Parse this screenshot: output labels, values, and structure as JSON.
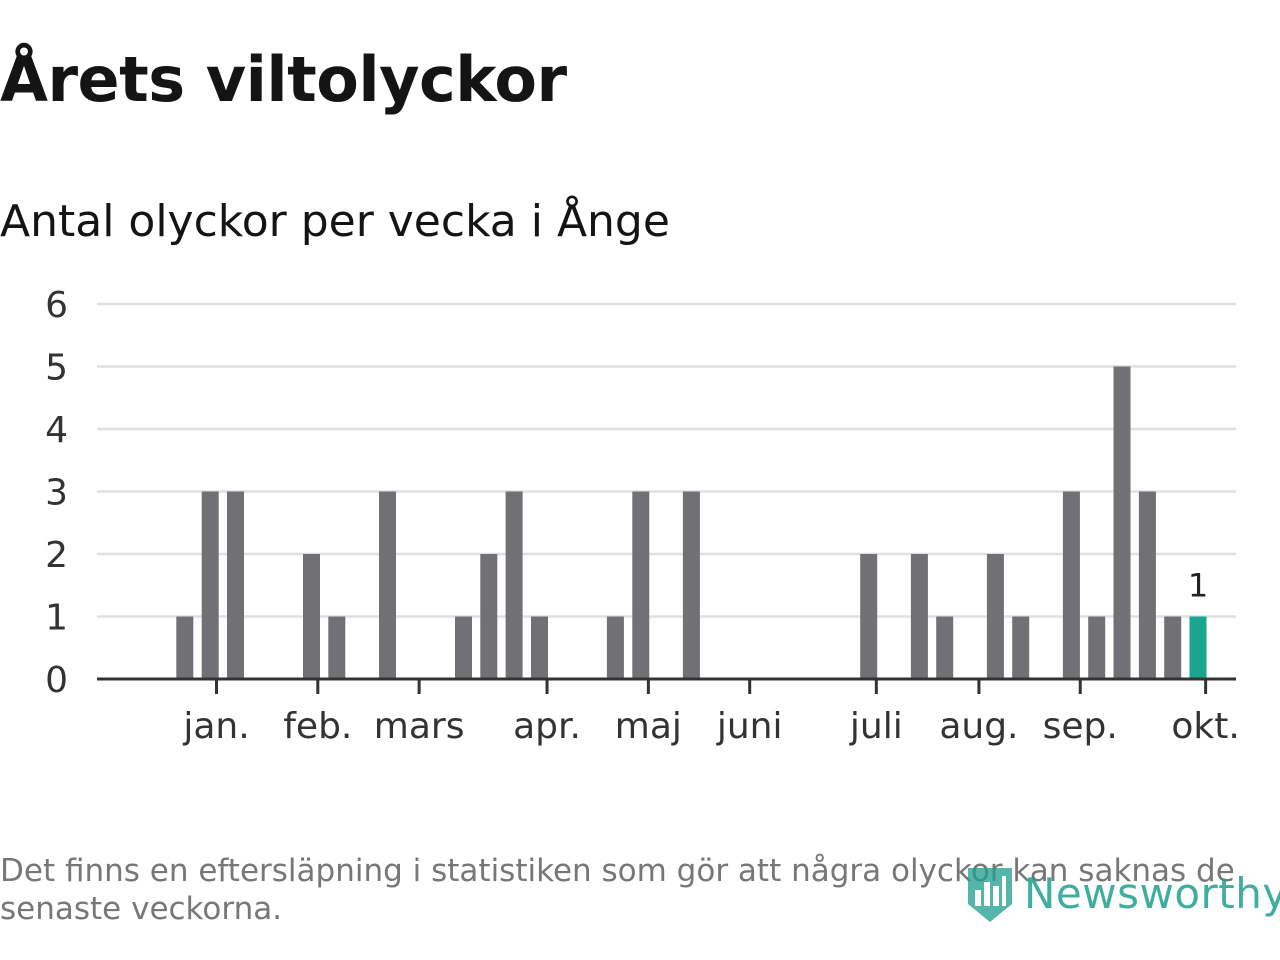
{
  "header": {
    "title": "Årets viltolyckor",
    "subtitle": "Antal olyckor per vecka i Ånge"
  },
  "chart_data": {
    "type": "bar",
    "title": "Årets viltolyckor",
    "subtitle": "Antal olyckor per vecka i Ånge",
    "xlabel": "",
    "ylabel": "",
    "ylim": [
      0,
      6
    ],
    "yticks": [
      0,
      1,
      2,
      3,
      4,
      5,
      6
    ],
    "grid": true,
    "weeks": [
      1,
      2,
      3,
      4,
      5,
      6,
      7,
      8,
      9,
      10,
      11,
      12,
      13,
      14,
      15,
      16,
      17,
      18,
      19,
      20,
      21,
      22,
      23,
      24,
      25,
      26,
      27,
      28,
      29,
      30,
      31,
      32,
      33,
      34,
      35,
      36,
      37,
      38,
      39,
      40,
      41,
      42
    ],
    "values": [
      0,
      1,
      3,
      3,
      0,
      0,
      2,
      1,
      0,
      3,
      0,
      0,
      1,
      2,
      3,
      1,
      0,
      0,
      1,
      3,
      0,
      3,
      0,
      0,
      0,
      0,
      0,
      0,
      2,
      0,
      2,
      1,
      0,
      2,
      1,
      0,
      3,
      1,
      5,
      3,
      1,
      1
    ],
    "month_ticks": [
      {
        "label": "jan.",
        "week": 3.25
      },
      {
        "label": "feb.",
        "week": 7.25
      },
      {
        "label": "mars",
        "week": 11.25
      },
      {
        "label": "apr.",
        "week": 16.3
      },
      {
        "label": "maj",
        "week": 20.3
      },
      {
        "label": "juni",
        "week": 24.3
      },
      {
        "label": "juli",
        "week": 29.3
      },
      {
        "label": "aug.",
        "week": 33.35
      },
      {
        "label": "sep.",
        "week": 37.35
      },
      {
        "label": "okt.",
        "week": 42.3
      }
    ],
    "highlight": {
      "week": 42,
      "label": "1"
    },
    "colors": {
      "bar": "#717075",
      "highlight": "#1aa591",
      "grid": "#e0e0e0",
      "axis": "#333333"
    }
  },
  "footer": {
    "note": "Det finns en eftersläpning i statistiken som gör att några olyckor kan saknas de senaste veckorna.",
    "brand": "Newsworthy",
    "brand_icon": "newsworthy-logo-icon"
  }
}
